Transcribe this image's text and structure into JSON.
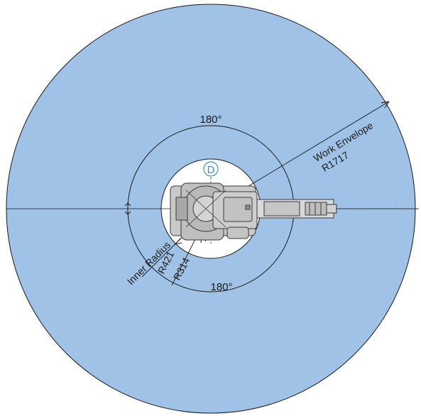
{
  "labels": {
    "top_angle": "180°",
    "bottom_angle": "180°",
    "work_envelope": "Work Envelope",
    "work_envelope_radius": "R1717",
    "inner_radius": "Inner Radius",
    "inner_radius_value": "R421",
    "mid_radius_value": "R314",
    "axis_marker": "D"
  },
  "colors": {
    "envelope_fill": "#a0c2e6",
    "outline": "#1a1a1a",
    "marker": "#3a8fd6",
    "robot_fill": "#cfcfcf",
    "robot_stroke": "#3a3a3a"
  }
}
